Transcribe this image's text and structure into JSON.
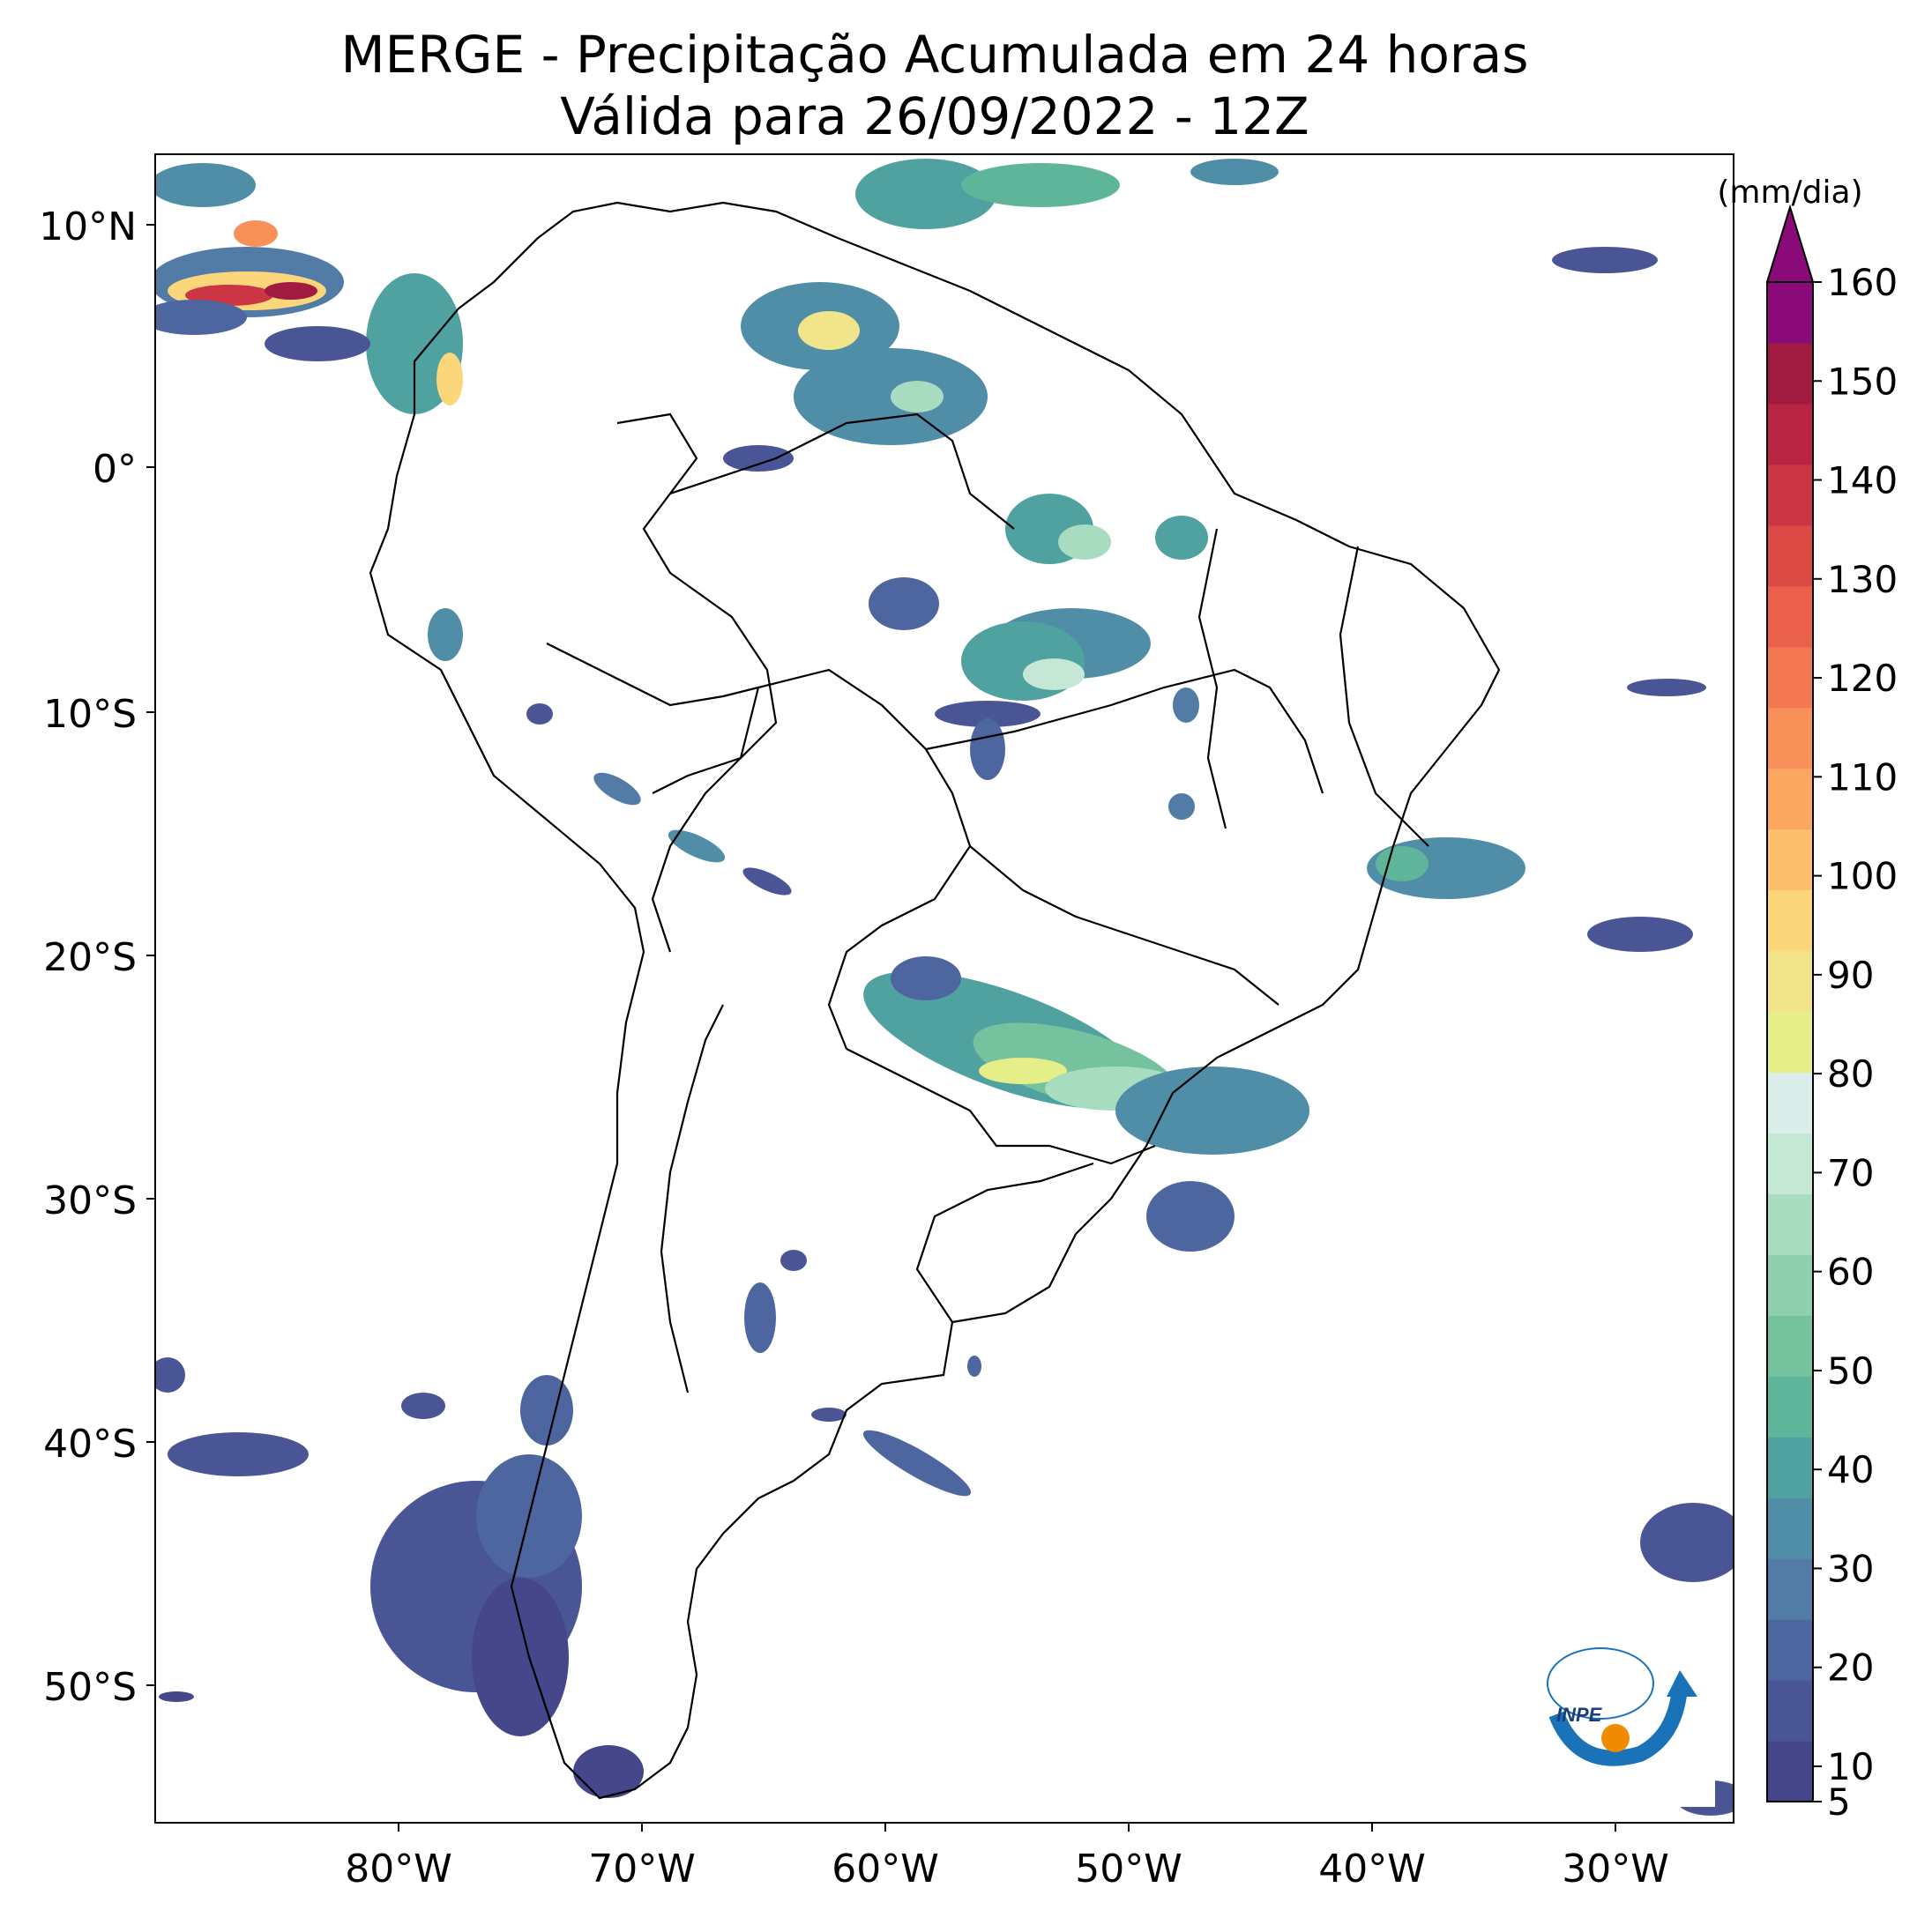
{
  "title": {
    "line1": "MERGE - Precipitação Acumulada em 24 horas",
    "line2": "Válida para 26/09/2022 - 12Z"
  },
  "lat_labels": [
    "10°N",
    "0°",
    "10°S",
    "20°S",
    "30°S",
    "40°S",
    "50°S"
  ],
  "lon_labels": [
    "80°W",
    "70°W",
    "60°W",
    "50°W",
    "40°W",
    "30°W"
  ],
  "colorbar": {
    "unit": "(mm/dia)",
    "ticks": [
      "5",
      "10",
      "20",
      "30",
      "40",
      "50",
      "60",
      "70",
      "80",
      "90",
      "100",
      "110",
      "120",
      "130",
      "140",
      "150",
      "160"
    ],
    "colors": [
      "#46468a",
      "#4a5596",
      "#4e669f",
      "#527ba6",
      "#4f8ea6",
      "#4fa2a0",
      "#5fb59a",
      "#75c29f",
      "#8ecfae",
      "#a8dcc0",
      "#c4e7d6",
      "#dbeee9",
      "#e6ee8a",
      "#f1e48a",
      "#fbd67a",
      "#fcc06c",
      "#fba762",
      "#f8905a",
      "#f47852",
      "#ea604a",
      "#dc4a46",
      "#cc3644",
      "#b82542",
      "#a11a40",
      "#8a0a7a"
    ]
  },
  "logo": {
    "text": "INPE"
  }
}
